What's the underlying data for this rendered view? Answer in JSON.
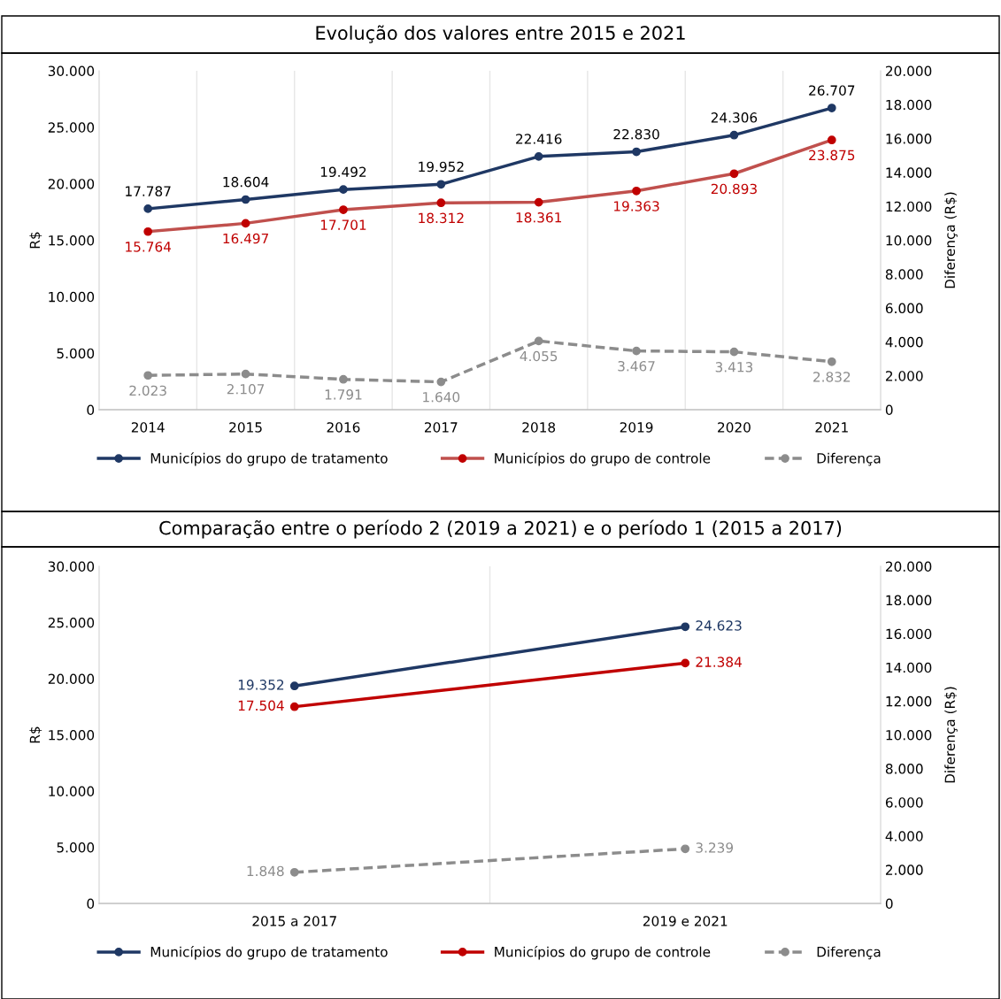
{
  "chart_data": [
    {
      "type": "line",
      "title": "Evolução dos valores entre 2015 e 2021",
      "ylabel": "R$",
      "y2label": "Diferença (R$)",
      "categories": [
        "2014",
        "2015",
        "2016",
        "2017",
        "2018",
        "2019",
        "2020",
        "2021"
      ],
      "series": [
        {
          "name": "Municípios do grupo de tratamento",
          "color": "#1f3864",
          "values": [
            17787,
            18604,
            19492,
            19952,
            22416,
            22830,
            24306,
            26707
          ],
          "value_labels": [
            "17.787",
            "18.604",
            "19.492",
            "19.952",
            "22.416",
            "22.830",
            "24.306",
            "26.707"
          ]
        },
        {
          "name": "Municípios do grupo de controle",
          "color": "#c0504d",
          "values": [
            15764,
            16497,
            17701,
            18312,
            18361,
            19363,
            20893,
            23875
          ],
          "value_labels": [
            "15.764",
            "16.497",
            "17.701",
            "18.312",
            "18.361",
            "19.363",
            "20.893",
            "23.875"
          ]
        },
        {
          "name": "Diferença",
          "color": "#8c8c8c",
          "axis": "y2",
          "line_style": "dashed",
          "values": [
            2023,
            2107,
            1791,
            1640,
            4055,
            3467,
            3413,
            2832
          ],
          "value_labels": [
            "2.023",
            "2.107",
            "1.791",
            "1.640",
            "4.055",
            "3.467",
            "3.413",
            "2.832"
          ]
        }
      ],
      "ylim": [
        0,
        30000
      ],
      "yticks": [
        {
          "value": 0,
          "label": "0"
        },
        {
          "value": 5000,
          "label": "5.000"
        },
        {
          "value": 10000,
          "label": "10.000"
        },
        {
          "value": 15000,
          "label": "15.000"
        },
        {
          "value": 20000,
          "label": "20.000"
        },
        {
          "value": 25000,
          "label": "25.000"
        },
        {
          "value": 30000,
          "label": "30.000"
        }
      ],
      "y2lim": [
        0,
        20000
      ],
      "y2ticks": [
        {
          "value": 0,
          "label": "0"
        },
        {
          "value": 2000,
          "label": "2.000"
        },
        {
          "value": 4000,
          "label": "4.000"
        },
        {
          "value": 6000,
          "label": "6.000"
        },
        {
          "value": 8000,
          "label": "8.000"
        },
        {
          "value": 10000,
          "label": "10.000"
        },
        {
          "value": 12000,
          "label": "12.000"
        },
        {
          "value": 14000,
          "label": "14.000"
        },
        {
          "value": 16000,
          "label": "16.000"
        },
        {
          "value": 18000,
          "label": "18.000"
        },
        {
          "value": 20000,
          "label": "20.000"
        }
      ],
      "marker": "circle",
      "grid": "x",
      "legend": "bottom"
    },
    {
      "type": "line",
      "title": "Comparação entre o período 2 (2019 a 2021) e o período 1 (2015 a 2017)",
      "ylabel": "R$",
      "y2label": "Diferença (R$)",
      "categories": [
        "2015 a 2017",
        "2019 e 2021"
      ],
      "series": [
        {
          "name": "Municípios do grupo de tratamento",
          "color": "#1f3864",
          "values": [
            19352,
            24623
          ],
          "value_labels": [
            "19.352",
            "24.623"
          ]
        },
        {
          "name": "Municípios do grupo de controle",
          "color": "#c00000",
          "values": [
            17504,
            21384
          ],
          "value_labels": [
            "17.504",
            "21.384"
          ]
        },
        {
          "name": "Diferença",
          "color": "#8c8c8c",
          "axis": "y2",
          "line_style": "dashed",
          "values": [
            1848,
            3239
          ],
          "value_labels": [
            "1.848",
            "3.239"
          ]
        }
      ],
      "ylim": [
        0,
        30000
      ],
      "yticks": [
        {
          "value": 0,
          "label": "0"
        },
        {
          "value": 5000,
          "label": "5.000"
        },
        {
          "value": 10000,
          "label": "10.000"
        },
        {
          "value": 15000,
          "label": "15.000"
        },
        {
          "value": 20000,
          "label": "20.000"
        },
        {
          "value": 25000,
          "label": "25.000"
        },
        {
          "value": 30000,
          "label": "30.000"
        }
      ],
      "y2lim": [
        0,
        20000
      ],
      "y2ticks": [
        {
          "value": 0,
          "label": "0"
        },
        {
          "value": 2000,
          "label": "2.000"
        },
        {
          "value": 4000,
          "label": "4.000"
        },
        {
          "value": 6000,
          "label": "6.000"
        },
        {
          "value": 8000,
          "label": "8.000"
        },
        {
          "value": 10000,
          "label": "10.000"
        },
        {
          "value": 12000,
          "label": "12.000"
        },
        {
          "value": 14000,
          "label": "14.000"
        },
        {
          "value": 16000,
          "label": "16.000"
        },
        {
          "value": 18000,
          "label": "18.000"
        },
        {
          "value": 20000,
          "label": "20.000"
        }
      ],
      "marker": "circle",
      "grid": "x",
      "legend": "bottom"
    }
  ]
}
